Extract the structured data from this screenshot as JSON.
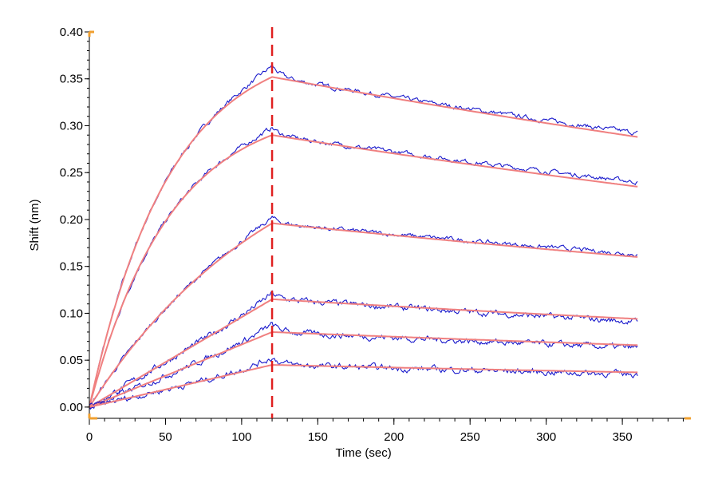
{
  "chart_data": {
    "type": "line",
    "title": "",
    "xlabel": "Time (sec)",
    "ylabel": "Shift (nm)",
    "xlim": [
      0,
      395
    ],
    "ylim": [
      -0.012,
      0.4
    ],
    "x_ticks": [
      0,
      50,
      100,
      150,
      200,
      250,
      300,
      350
    ],
    "x_tick_labels": [
      "0",
      "50",
      "100",
      "150",
      "200",
      "250",
      "300",
      "350"
    ],
    "y_ticks": [
      0.0,
      0.05,
      0.1,
      0.15,
      0.2,
      0.25,
      0.3,
      0.35,
      0.4
    ],
    "y_tick_labels": [
      "0.00",
      "0.05",
      "0.10",
      "0.15",
      "0.20",
      "0.25",
      "0.30",
      "0.35",
      "0.40"
    ],
    "grid": false,
    "legend": "none",
    "association_end_time": 120,
    "end_time": 360,
    "colors": {
      "data": "#1a1acc",
      "fit": "#f08080",
      "marker": "#e02020",
      "axis_corner": "#f0a030"
    },
    "series": [
      {
        "kind": "fit",
        "fit_at_120": 0.352,
        "assoc_shape": "curved",
        "fit_at_360": 0.288,
        "data_peak": 0.364,
        "data_at_360": 0.292
      },
      {
        "kind": "fit",
        "fit_at_120": 0.29,
        "assoc_shape": "curved",
        "fit_at_360": 0.235,
        "data_peak": 0.298,
        "data_at_360": 0.24
      },
      {
        "kind": "fit",
        "fit_at_120": 0.196,
        "assoc_shape": "slight-curve",
        "fit_at_360": 0.16,
        "data_peak": 0.202,
        "data_at_360": 0.163
      },
      {
        "kind": "fit",
        "fit_at_120": 0.115,
        "assoc_shape": "linear",
        "fit_at_360": 0.094,
        "data_peak": 0.121,
        "data_at_360": 0.091
      },
      {
        "kind": "fit",
        "fit_at_120": 0.08,
        "assoc_shape": "linear",
        "fit_at_360": 0.066,
        "data_peak": 0.088,
        "data_at_360": 0.063
      },
      {
        "kind": "fit",
        "fit_at_120": 0.045,
        "assoc_shape": "linear",
        "fit_at_360": 0.037,
        "data_peak": 0.053,
        "data_at_360": 0.035
      }
    ]
  }
}
